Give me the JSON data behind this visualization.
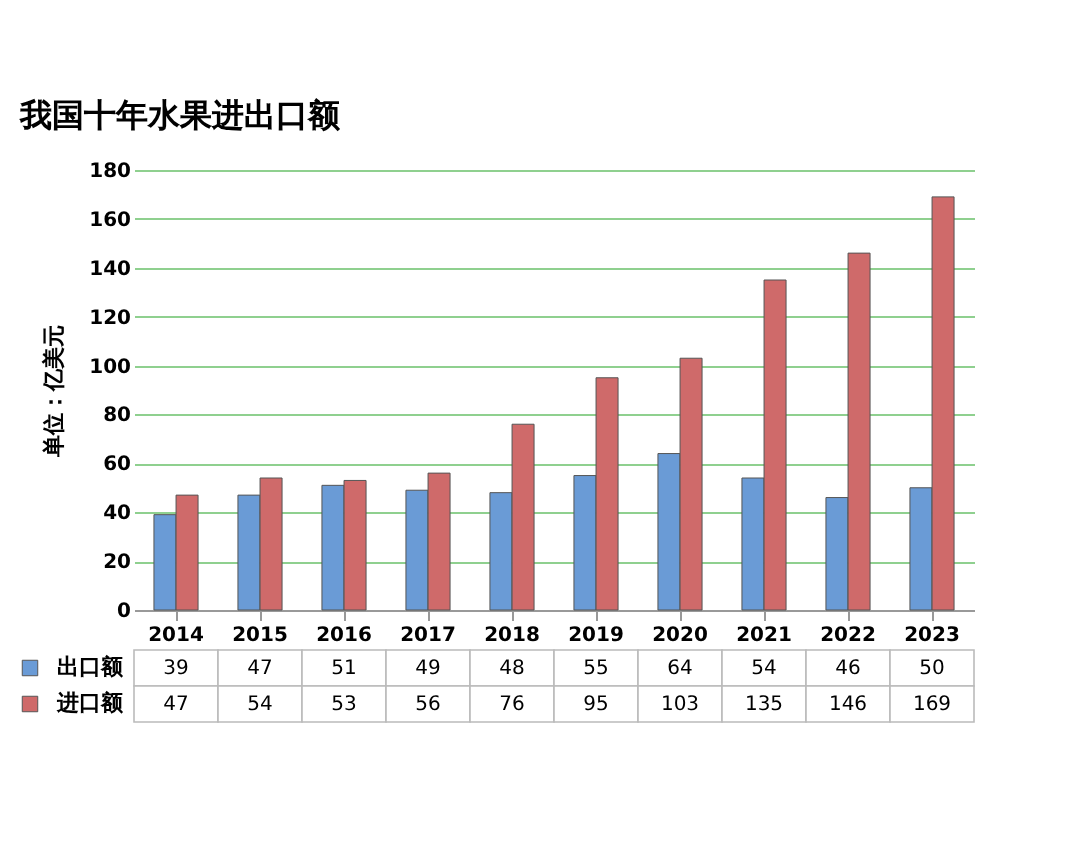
{
  "chart_data": {
    "type": "bar",
    "title": "我国十年水果进出口额",
    "ylabel": "单位：亿美元",
    "categories": [
      "2014",
      "2015",
      "2016",
      "2017",
      "2018",
      "2019",
      "2020",
      "2021",
      "2022",
      "2023"
    ],
    "series": [
      {
        "name": "出口额",
        "color": "#6a9bd6",
        "values": [
          39,
          47,
          51,
          49,
          48,
          55,
          64,
          54,
          46,
          50
        ]
      },
      {
        "name": "进口额",
        "color": "#cf6a6a",
        "values": [
          47,
          54,
          53,
          56,
          76,
          95,
          103,
          135,
          146,
          169
        ]
      }
    ],
    "ylim": [
      0,
      180
    ],
    "yticks": [
      0,
      20,
      40,
      60,
      80,
      100,
      120,
      140,
      160,
      180
    ],
    "grid": "y",
    "legend": "bottom left",
    "data_labels": true
  }
}
